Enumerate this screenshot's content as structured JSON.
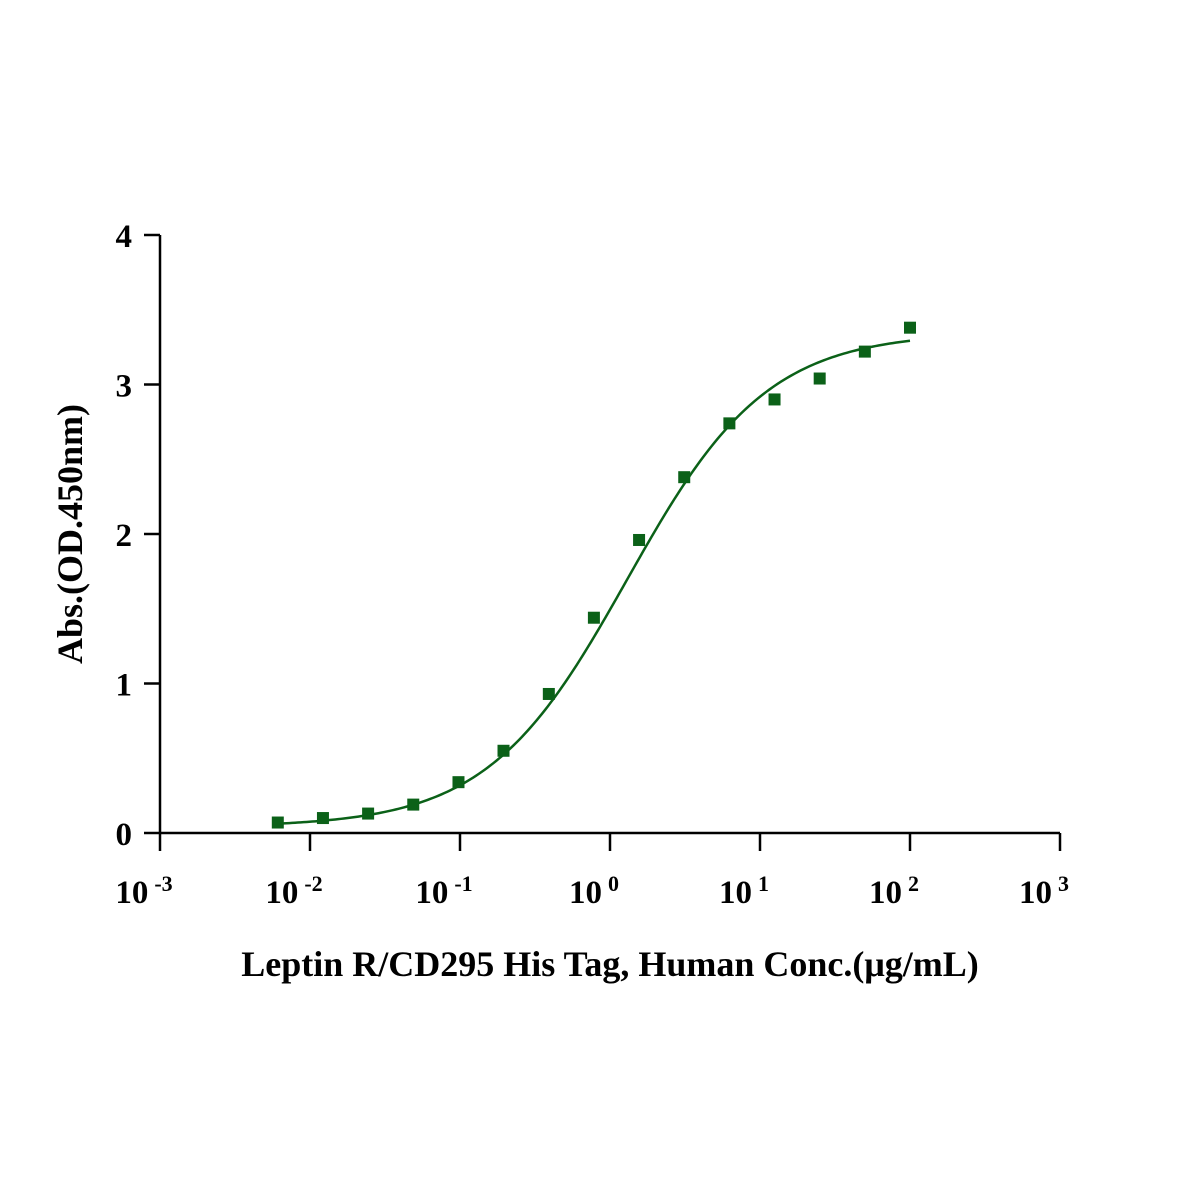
{
  "chart_data": {
    "type": "scatter",
    "title": "",
    "xlabel": "Leptin R/CD295 His Tag, Human Conc.(μg/mL)",
    "ylabel": "Abs.(OD.450nm)",
    "x_scale": "log10",
    "xlim": [
      0.001,
      1000
    ],
    "ylim": [
      0,
      4
    ],
    "x_ticks": [
      {
        "base": "10",
        "exp": "-3",
        "value": 0.001
      },
      {
        "base": "10",
        "exp": "-2",
        "value": 0.01
      },
      {
        "base": "10",
        "exp": "-1",
        "value": 0.1
      },
      {
        "base": "10",
        "exp": "0",
        "value": 1
      },
      {
        "base": "10",
        "exp": "1",
        "value": 10
      },
      {
        "base": "10",
        "exp": "2",
        "value": 100
      },
      {
        "base": "10",
        "exp": "3",
        "value": 1000
      }
    ],
    "y_ticks": [
      {
        "label": "0",
        "value": 0
      },
      {
        "label": "1",
        "value": 1
      },
      {
        "label": "2",
        "value": 2
      },
      {
        "label": "3",
        "value": 3
      },
      {
        "label": "4",
        "value": 4
      }
    ],
    "grid": false,
    "legend": "none",
    "series": [
      {
        "marker": "square",
        "color": "#0b6118",
        "points": [
          {
            "x": 0.0061,
            "y": 0.07
          },
          {
            "x": 0.0122,
            "y": 0.1
          },
          {
            "x": 0.0244,
            "y": 0.13
          },
          {
            "x": 0.0488,
            "y": 0.19
          },
          {
            "x": 0.0977,
            "y": 0.34
          },
          {
            "x": 0.195,
            "y": 0.55
          },
          {
            "x": 0.391,
            "y": 0.93
          },
          {
            "x": 0.781,
            "y": 1.44
          },
          {
            "x": 1.5625,
            "y": 1.96
          },
          {
            "x": 3.125,
            "y": 2.38
          },
          {
            "x": 6.25,
            "y": 2.74
          },
          {
            "x": 12.5,
            "y": 2.9
          },
          {
            "x": 25,
            "y": 3.04
          },
          {
            "x": 50,
            "y": 3.22
          },
          {
            "x": 100,
            "y": 3.38
          }
        ]
      }
    ],
    "fit_curve": {
      "model": "4PL",
      "color": "#0b6118",
      "bottom": 0.04,
      "top": 3.35,
      "ec50": 1.3,
      "hill": 0.93,
      "x_range": [
        0.0061,
        100
      ]
    }
  }
}
